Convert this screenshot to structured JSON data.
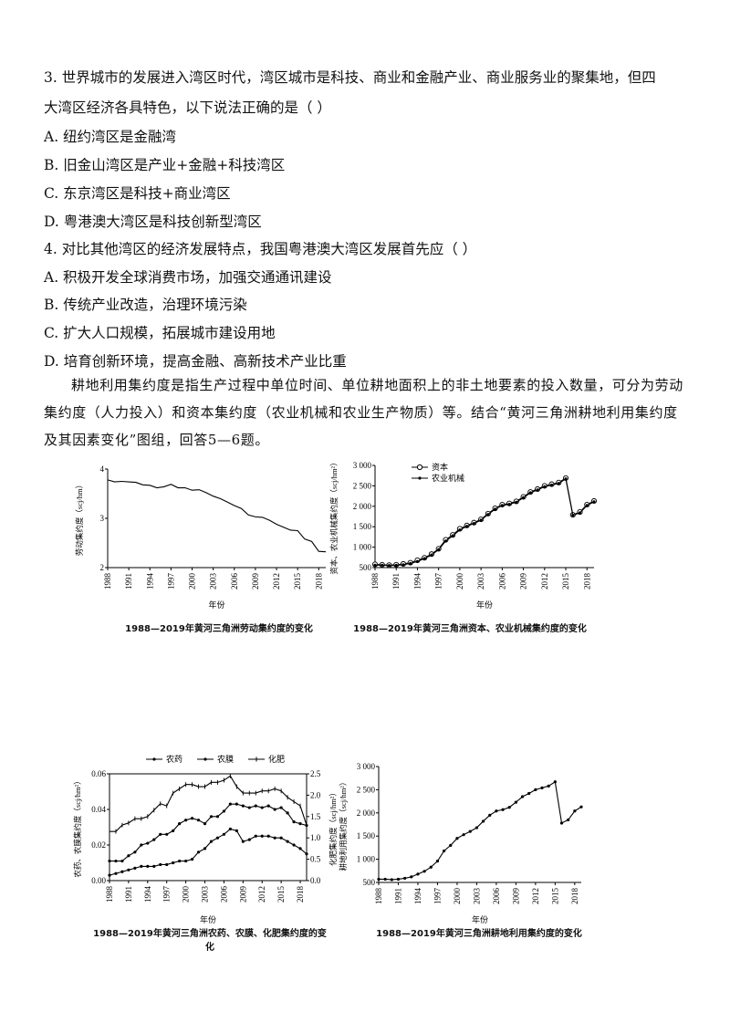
{
  "questions": {
    "q3_line1": "3. 世界城市的发展进入湾区时代，湾区城市是科技、商业和金融产业、商业服务业的聚集地，但四",
    "q3_line2": "大湾区经济各具特色，以下说法正确的是（    ）",
    "q3_a": "A. 纽约湾区是金融湾",
    "q3_b": "B. 旧金山湾区是产业+金融+科技湾区",
    "q3_c": "C. 东京湾区是科技+商业湾区",
    "q3_d": "D. 粤港澳大湾区是科技创新型湾区",
    "q4_stem": "4. 对比其他湾区的经济发展特点，我国粤港澳大湾区发展首先应（    ）",
    "q4_a": "A. 积极开发全球消费市场，加强交通通讯建设",
    "q4_b": "B. 传统产业改造，治理环境污染",
    "q4_c": "C. 扩大人口规模，拓展城市建设用地",
    "q4_d": "D. 培育创新环境，提高金融、高新技术产业比重"
  },
  "intro": "耕地利用集约度是指生产过程中单位时间、单位耕地面积上的非土地要素的投入数量，可分为劳动集约度（人力投入）和资本集约度（农业机械和农业生产物质）等。结合“黄河三角洲耕地利用集约度及其因素变化”图组，回答5—6题。",
  "chart_data": [
    {
      "type": "line",
      "title": "1988—2019年黄河三角洲劳动集约度的变化",
      "xlabel": "年份",
      "ylabel": "劳动集约度（scj/hm）",
      "x_ticks": [
        "1988",
        "1991",
        "1994",
        "1997",
        "2000",
        "2003",
        "2006",
        "2009",
        "2012",
        "2015",
        "2018"
      ],
      "y_ticks": [
        "2",
        "3",
        "4"
      ],
      "xlim": [
        1988,
        2019
      ],
      "ylim": [
        2,
        4
      ],
      "x": [
        1988,
        1989,
        1990,
        1991,
        1992,
        1993,
        1994,
        1995,
        1996,
        1997,
        1998,
        1999,
        2000,
        2001,
        2002,
        2003,
        2004,
        2005,
        2006,
        2007,
        2008,
        2009,
        2010,
        2011,
        2012,
        2013,
        2014,
        2015,
        2016,
        2017,
        2018,
        2019
      ],
      "series": [
        {
          "values": [
            3.78,
            3.74,
            3.75,
            3.74,
            3.73,
            3.68,
            3.67,
            3.62,
            3.64,
            3.69,
            3.62,
            3.62,
            3.57,
            3.58,
            3.52,
            3.45,
            3.4,
            3.33,
            3.26,
            3.2,
            3.07,
            3.03,
            3.02,
            2.96,
            2.88,
            2.82,
            2.76,
            2.75,
            2.58,
            2.53,
            2.33,
            2.32
          ]
        }
      ]
    },
    {
      "type": "line",
      "title": "1988—2019年黄河三角洲资本、农业机械集约度的变化",
      "xlabel": "年份",
      "ylabel": "资本、农业机械集约度（scj/hm²）",
      "x_ticks": [
        "1988",
        "1991",
        "1994",
        "1997",
        "2000",
        "2003",
        "2006",
        "2009",
        "2012",
        "2015",
        "2018"
      ],
      "y_ticks": [
        "500",
        "1 000",
        "1 500",
        "2 000",
        "2 500",
        "3 000"
      ],
      "xlim": [
        1988,
        2019
      ],
      "ylim": [
        500,
        3000
      ],
      "legend": "top-left",
      "x": [
        1988,
        1989,
        1990,
        1991,
        1992,
        1993,
        1994,
        1995,
        1996,
        1997,
        1998,
        1999,
        2000,
        2001,
        2002,
        2003,
        2004,
        2005,
        2006,
        2007,
        2008,
        2009,
        2010,
        2011,
        2012,
        2013,
        2014,
        2015,
        2016,
        2017,
        2018,
        2019
      ],
      "series": [
        {
          "name": "资本",
          "marker": "circle",
          "values": [
            580,
            570,
            560,
            570,
            590,
            620,
            680,
            740,
            830,
            960,
            1180,
            1300,
            1450,
            1530,
            1600,
            1680,
            1820,
            1950,
            2040,
            2070,
            2120,
            2230,
            2350,
            2420,
            2500,
            2540,
            2580,
            2690,
            1790,
            1860,
            2040,
            2130
          ]
        },
        {
          "name": "农业机械",
          "marker": "dot",
          "values": [
            560,
            560,
            550,
            555,
            570,
            600,
            650,
            720,
            810,
            940,
            1150,
            1280,
            1420,
            1510,
            1580,
            1660,
            1800,
            1930,
            2020,
            2050,
            2100,
            2210,
            2330,
            2400,
            2480,
            2520,
            2560,
            2670,
            1780,
            1840,
            2020,
            2110
          ]
        }
      ]
    },
    {
      "type": "line",
      "title": "1988—2019年黄河三角洲农药、农膜、化肥集约度的变化",
      "xlabel": "年份",
      "ylabel": "农药、农膜集约度（scj/hm²）",
      "y2label": "化肥集约度（scj/hm²）",
      "x_ticks": [
        "1988",
        "1991",
        "1994",
        "1997",
        "2000",
        "2003",
        "2006",
        "2009",
        "2012",
        "2015",
        "2018"
      ],
      "y_ticks": [
        "0.00",
        "0.02",
        "0.04",
        "0.06"
      ],
      "y2_ticks": [
        "0.0",
        "0.5",
        "1.0",
        "1.5",
        "2.0",
        "2.5"
      ],
      "xlim": [
        1988,
        2019
      ],
      "ylim": [
        0,
        0.06
      ],
      "y2lim": [
        0,
        2.5
      ],
      "legend": "top",
      "x": [
        1988,
        1989,
        1990,
        1991,
        1992,
        1993,
        1994,
        1995,
        1996,
        1997,
        1998,
        1999,
        2000,
        2001,
        2002,
        2003,
        2004,
        2005,
        2006,
        2007,
        2008,
        2009,
        2010,
        2011,
        2012,
        2013,
        2014,
        2015,
        2016,
        2017,
        2018,
        2019
      ],
      "series": [
        {
          "name": "农药",
          "axis": "left",
          "marker": "dot",
          "values": [
            0.003,
            0.004,
            0.005,
            0.006,
            0.007,
            0.008,
            0.008,
            0.008,
            0.009,
            0.009,
            0.01,
            0.011,
            0.011,
            0.012,
            0.016,
            0.018,
            0.022,
            0.024,
            0.026,
            0.029,
            0.028,
            0.022,
            0.023,
            0.025,
            0.025,
            0.025,
            0.024,
            0.024,
            0.022,
            0.02,
            0.018,
            0.015
          ]
        },
        {
          "name": "农膜",
          "axis": "left",
          "marker": "dot",
          "values": [
            0.011,
            0.011,
            0.011,
            0.014,
            0.016,
            0.02,
            0.021,
            0.023,
            0.026,
            0.026,
            0.028,
            0.032,
            0.034,
            0.035,
            0.034,
            0.032,
            0.036,
            0.036,
            0.039,
            0.043,
            0.043,
            0.042,
            0.041,
            0.042,
            0.041,
            0.042,
            0.04,
            0.041,
            0.038,
            0.033,
            0.032,
            0.031
          ]
        },
        {
          "name": "化肥",
          "axis": "right",
          "marker": "tick",
          "values": [
            1.15,
            1.15,
            1.3,
            1.35,
            1.45,
            1.45,
            1.5,
            1.65,
            1.8,
            1.75,
            2.05,
            2.15,
            2.25,
            2.25,
            2.2,
            2.2,
            2.3,
            2.3,
            2.35,
            2.45,
            2.2,
            2.05,
            2.05,
            2.05,
            2.1,
            2.1,
            2.15,
            2.1,
            1.95,
            1.85,
            1.75,
            1.3
          ]
        }
      ]
    },
    {
      "type": "line",
      "title": "1988—2019年黄河三角洲耕地利用集约度的变化",
      "xlabel": "年份",
      "ylabel": "耕地利用集约度（scj/hm²）",
      "x_ticks": [
        "1988",
        "1991",
        "1994",
        "1997",
        "2000",
        "2003",
        "2006",
        "2009",
        "2012",
        "2015",
        "2018"
      ],
      "y_ticks": [
        "500",
        "1 000",
        "1 500",
        "2 000",
        "2 500",
        "3 000"
      ],
      "xlim": [
        1988,
        2019
      ],
      "ylim": [
        500,
        3000
      ],
      "x": [
        1988,
        1989,
        1990,
        1991,
        1992,
        1993,
        1994,
        1995,
        1996,
        1997,
        1998,
        1999,
        2000,
        2001,
        2002,
        2003,
        2004,
        2005,
        2006,
        2007,
        2008,
        2009,
        2010,
        2011,
        2012,
        2013,
        2014,
        2015,
        2016,
        2017,
        2018,
        2019
      ],
      "series": [
        {
          "marker": "dot",
          "values": [
            570,
            570,
            560,
            570,
            590,
            620,
            680,
            740,
            830,
            960,
            1180,
            1300,
            1450,
            1530,
            1600,
            1680,
            1820,
            1950,
            2040,
            2070,
            2120,
            2230,
            2350,
            2420,
            2500,
            2540,
            2580,
            2670,
            1780,
            1850,
            2040,
            2130
          ]
        }
      ]
    }
  ]
}
